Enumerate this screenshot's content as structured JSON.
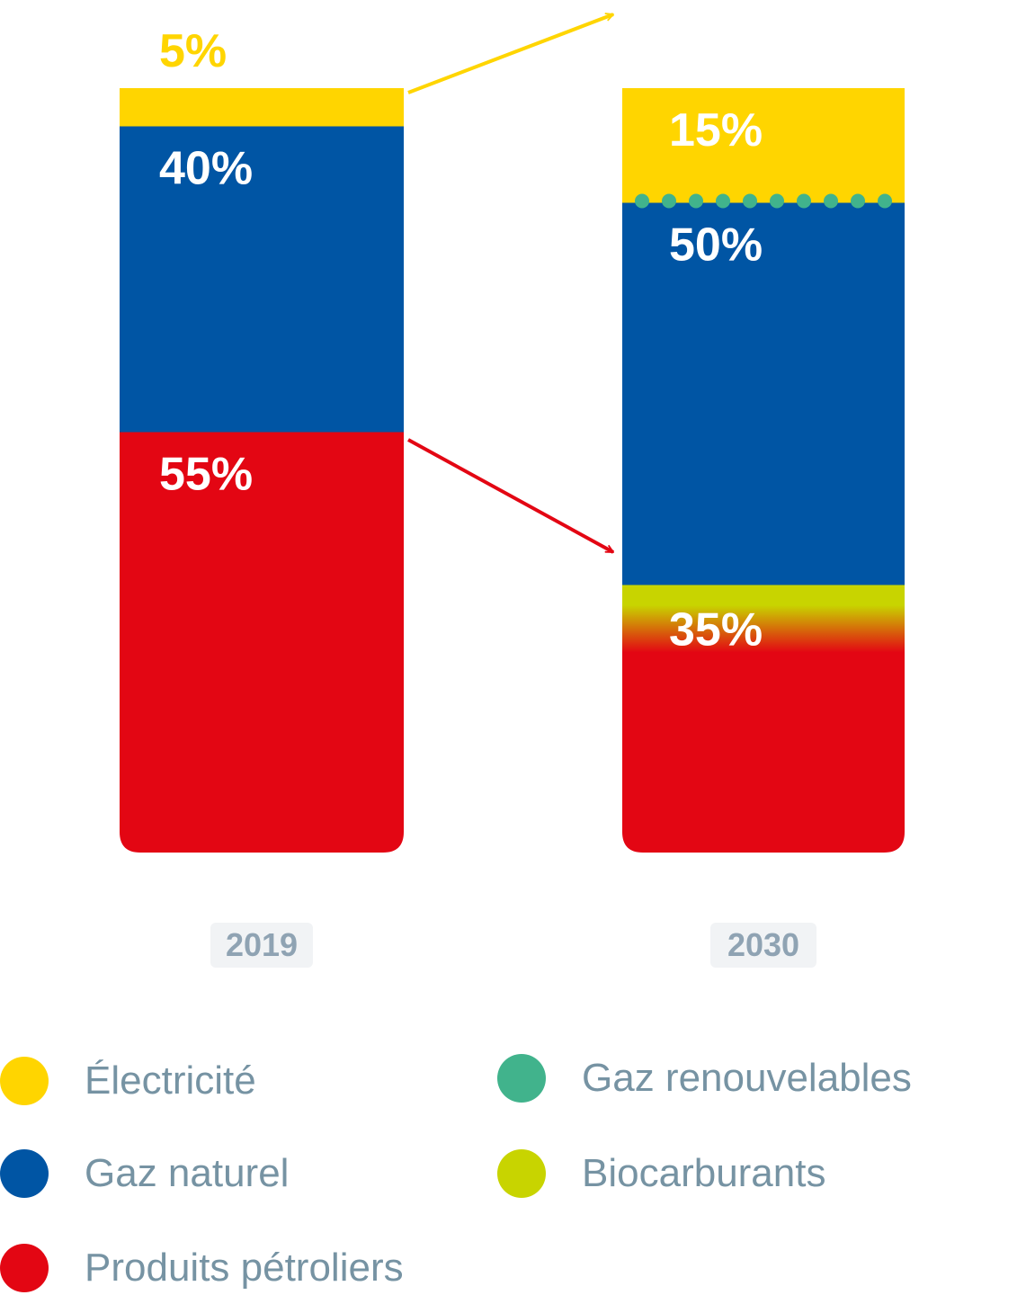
{
  "chart_data": {
    "type": "bar",
    "stacked": true,
    "categories": [
      "2019",
      "2030"
    ],
    "series": [
      {
        "name": "Produits pétroliers",
        "values": [
          55,
          35
        ]
      },
      {
        "name": "Gaz naturel",
        "values": [
          40,
          50
        ]
      },
      {
        "name": "Électricité",
        "values": [
          5,
          15
        ]
      }
    ],
    "segment_labels": {
      "2019": [
        "55%",
        "40%",
        "5%"
      ],
      "2030": [
        "35%",
        "50%",
        "15%"
      ]
    },
    "ylim": [
      0,
      100
    ],
    "legend_position": "bottom",
    "grid": false
  },
  "years": [
    "2019",
    "2030"
  ],
  "legend": [
    {
      "label": "Électricité",
      "color": "#ffd500"
    },
    {
      "label": "Gaz renouvelables",
      "color": "#41b38c"
    },
    {
      "label": "Gaz naturel",
      "color": "#0055a4"
    },
    {
      "label": "Biocarburants",
      "color": "#c8d400"
    },
    {
      "label": "Produits pétroliers",
      "color": "#e30613"
    }
  ],
  "colors": {
    "electricite": "#ffd500",
    "gaz_renouvelables": "#41b38c",
    "gaz_naturel": "#0055a4",
    "biocarburants": "#c8d400",
    "produits_petroliers": "#e30613"
  }
}
